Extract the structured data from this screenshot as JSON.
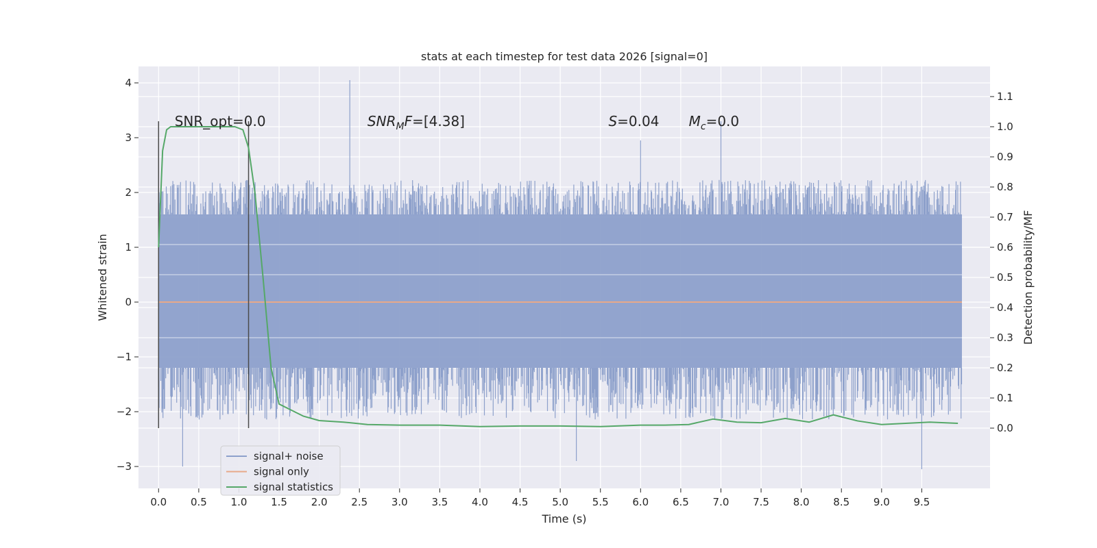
{
  "chart_data": {
    "type": "line",
    "title": "stats at each timestep for test data 2026 [signal=0]",
    "xlabel": "Time (s)",
    "ylabel": "Whitened strain",
    "ylabel_right": "Detection probability/MF",
    "xlim": [
      -0.25,
      10.35
    ],
    "ylim": [
      -3.4,
      4.3
    ],
    "ylim_right": [
      -0.2,
      1.2
    ],
    "grid": true,
    "x_ticks": [
      0.0,
      0.5,
      1.0,
      1.5,
      2.0,
      2.5,
      3.0,
      3.5,
      4.0,
      4.5,
      5.0,
      5.5,
      6.0,
      6.5,
      7.0,
      7.5,
      8.0,
      8.5,
      9.0,
      9.5
    ],
    "x_tick_labels": [
      "0.0",
      "0.5",
      "1.0",
      "1.5",
      "2.0",
      "2.5",
      "3.0",
      "3.5",
      "4.0",
      "4.5",
      "5.0",
      "5.5",
      "6.0",
      "6.5",
      "7.0",
      "7.5",
      "8.0",
      "8.5",
      "9.0",
      "9.5"
    ],
    "y_ticks": [
      -3,
      -2,
      -1,
      0,
      1,
      2,
      3,
      4
    ],
    "y_tick_labels": [
      "−3",
      "−2",
      "−1",
      "0",
      "1",
      "2",
      "3",
      "4"
    ],
    "y_right_ticks": [
      0.0,
      0.1,
      0.2,
      0.3,
      0.4,
      0.5,
      0.6,
      0.7,
      0.8,
      0.9,
      1.0,
      1.1
    ],
    "y_right_tick_labels": [
      "0.0",
      "0.1",
      "0.2",
      "0.3",
      "0.4",
      "0.5",
      "0.6",
      "0.7",
      "0.8",
      "0.9",
      "1.0",
      "1.1"
    ],
    "legend_position": "lower-left",
    "legend": [
      {
        "label": "signal+ noise",
        "color": "#8da0cb"
      },
      {
        "label": "signal only",
        "color": "#e8a989"
      },
      {
        "label": "signal statistics",
        "color": "#55a868"
      }
    ],
    "annotations": [
      {
        "text": "SNR_opt=0.0",
        "x": 0.2,
        "y": 3.3
      },
      {
        "text_main": "SNR",
        "text_sub": "M",
        "text_rest": "F=[4.38]",
        "x": 2.6,
        "y": 3.3
      },
      {
        "text_main": "S",
        "text_rest": "=0.04",
        "x": 5.6,
        "y": 3.3
      },
      {
        "text_main": "M",
        "text_sub": "c",
        "text_rest": "=0.0",
        "x": 6.6,
        "y": 3.3
      }
    ],
    "vlines": [
      {
        "x": 0.0,
        "ymin": -2.3,
        "ymax": 3.3
      },
      {
        "x": 1.12,
        "ymin": -2.3,
        "ymax": 3.3
      }
    ],
    "series": [
      {
        "name": "signal+ noise",
        "axis": "left",
        "color": "#8da0cb",
        "t_range": [
          0.0,
          10.0
        ],
        "envelope_upper": 2.2,
        "envelope_lower": -2.1,
        "band_upper": 1.6,
        "band_lower": -1.2,
        "peaks": [
          {
            "x": 2.38,
            "y": 4.05
          },
          {
            "x": 6.0,
            "y": 2.95
          },
          {
            "x": 7.0,
            "y": 3.3
          },
          {
            "x": 9.5,
            "y": -3.05
          },
          {
            "x": 0.3,
            "y": -3.0
          },
          {
            "x": 5.2,
            "y": -2.9
          }
        ]
      },
      {
        "name": "signal only",
        "axis": "left",
        "color": "#e8a989",
        "x": [
          0.0,
          10.0
        ],
        "y": [
          0.0,
          0.0
        ]
      },
      {
        "name": "signal statistics",
        "axis": "right",
        "color": "#55a868",
        "x": [
          0.0,
          0.05,
          0.1,
          0.15,
          0.25,
          0.4,
          0.6,
          0.8,
          0.95,
          1.05,
          1.12,
          1.2,
          1.3,
          1.4,
          1.5,
          1.65,
          1.8,
          2.0,
          2.3,
          2.6,
          3.0,
          3.5,
          4.0,
          4.5,
          5.0,
          5.5,
          6.0,
          6.3,
          6.6,
          6.9,
          7.2,
          7.5,
          7.8,
          8.1,
          8.4,
          8.7,
          9.0,
          9.3,
          9.6,
          9.95
        ],
        "y": [
          0.6,
          0.92,
          0.99,
          1.0,
          1.0,
          1.0,
          1.0,
          1.0,
          1.0,
          0.99,
          0.93,
          0.78,
          0.5,
          0.2,
          0.08,
          0.06,
          0.04,
          0.025,
          0.02,
          0.012,
          0.01,
          0.01,
          0.005,
          0.007,
          0.007,
          0.005,
          0.01,
          0.01,
          0.012,
          0.03,
          0.02,
          0.018,
          0.032,
          0.02,
          0.044,
          0.024,
          0.012,
          0.016,
          0.02,
          0.016
        ]
      }
    ]
  }
}
